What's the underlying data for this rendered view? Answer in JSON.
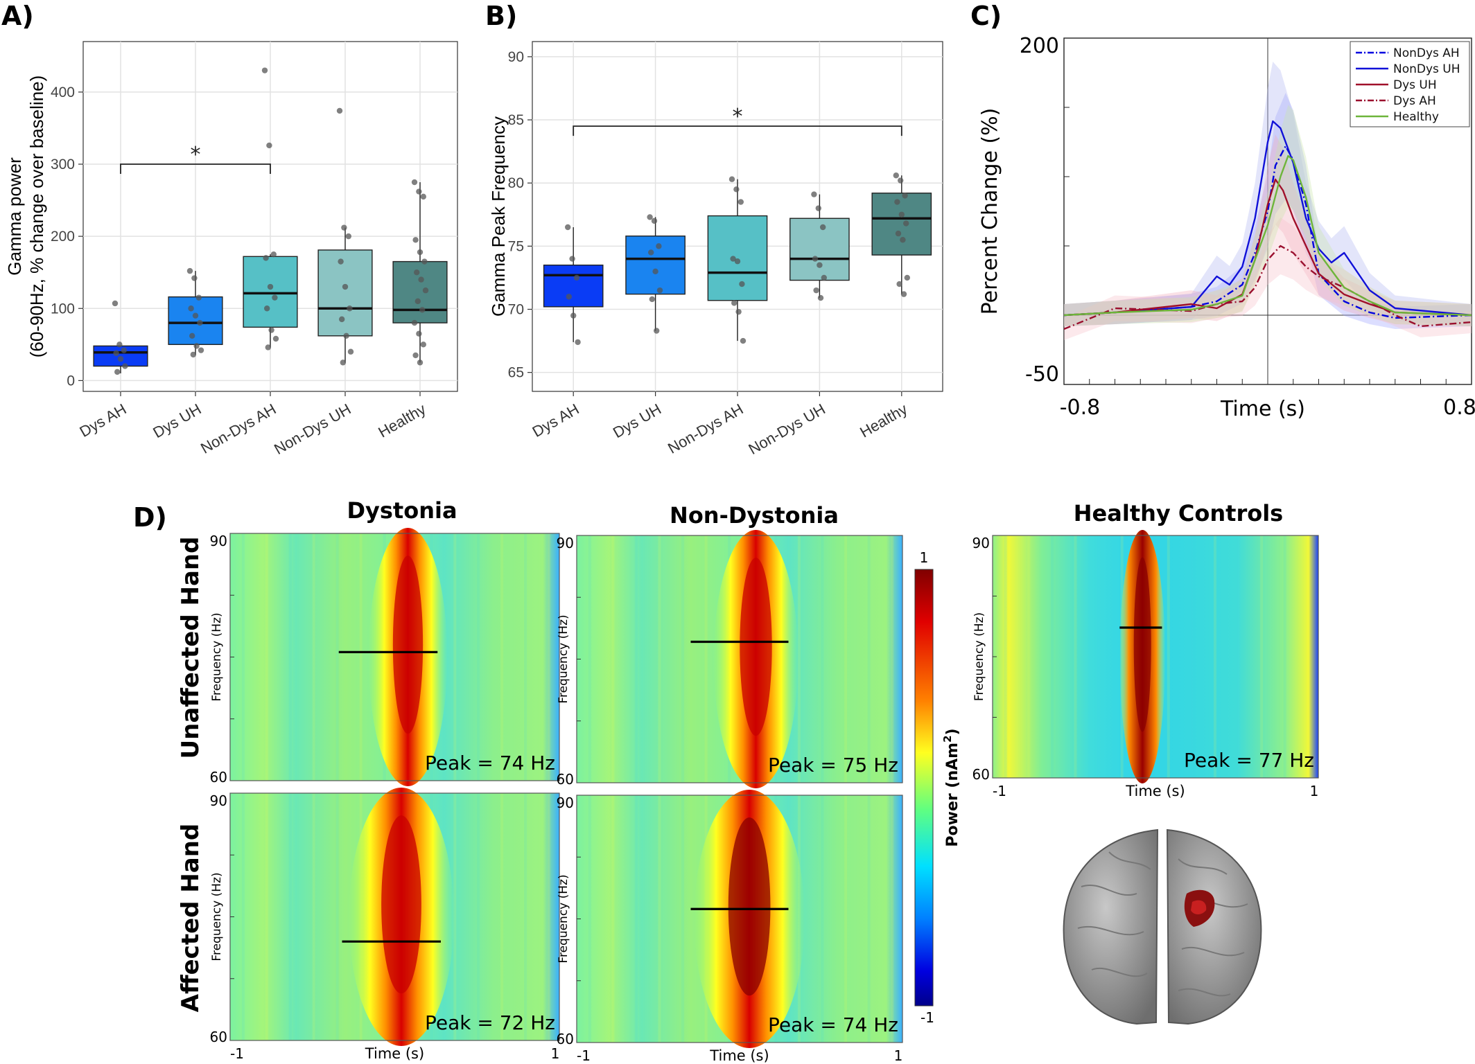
{
  "panel_labels": {
    "A": "A)",
    "B": "B)",
    "C": "C)",
    "D": "D)"
  },
  "colors": {
    "Dys AH": "#0a3cf5",
    "Dys UH": "#1a84f0",
    "Non-Dys AH": "#56c0c6",
    "Non-Dys UH": "#8bc4c3",
    "Healthy": "#4f8784",
    "NonDys AH": "#0000e0",
    "NonDys UH": "#1010d8",
    "Dys UH line": "#a0102a",
    "Dys AH line": "#9a0f2e",
    "Healthy line": "#6db53a"
  },
  "chart_data": [
    {
      "id": "A",
      "type": "box",
      "categories": [
        "Dys AH",
        "Dys UH",
        "Non-Dys AH",
        "Non-Dys UH",
        "Healthy"
      ],
      "ylabel": "Gamma power",
      "ylabel2": "(60-90Hz, % change over baseline)",
      "ylim": [
        -15,
        470
      ],
      "yticks": [
        0,
        100,
        200,
        300,
        400
      ],
      "grid": true,
      "boxes": [
        {
          "q1": 20,
          "median": 39,
          "q3": 48,
          "whisker_low": 10,
          "whisker_high": 48,
          "points": [
            107,
            50,
            42,
            38,
            30,
            20,
            12
          ]
        },
        {
          "q1": 50,
          "median": 80,
          "q3": 116,
          "whisker_low": 36,
          "whisker_high": 152,
          "points": [
            152,
            142,
            115,
            100,
            90,
            80,
            62,
            48,
            42,
            36
          ]
        },
        {
          "q1": 74,
          "median": 121,
          "q3": 172,
          "whisker_low": 46,
          "whisker_high": 175,
          "points": [
            430,
            326,
            175,
            170,
            130,
            115,
            100,
            70,
            58,
            46
          ]
        },
        {
          "q1": 62,
          "median": 100,
          "q3": 181,
          "whisker_low": 25,
          "whisker_high": 212,
          "points": [
            374,
            212,
            200,
            165,
            130,
            100,
            85,
            62,
            40,
            25
          ]
        },
        {
          "q1": 80,
          "median": 98,
          "q3": 165,
          "whisker_low": 25,
          "whisker_high": 275,
          "points": [
            275,
            262,
            255,
            195,
            178,
            165,
            150,
            140,
            125,
            110,
            98,
            80,
            65,
            50,
            35,
            25
          ]
        }
      ],
      "significance": {
        "from": 0,
        "to": 2,
        "y": 300,
        "label": "*"
      }
    },
    {
      "id": "B",
      "type": "box",
      "categories": [
        "Dys AH",
        "Dys UH",
        "Non-Dys AH",
        "Non-Dys UH",
        "Healthy"
      ],
      "ylabel": "Gamma Peak Frequency",
      "ylim": [
        63.5,
        91.2
      ],
      "yticks": [
        65,
        70,
        75,
        80,
        85,
        90
      ],
      "grid": true,
      "boxes": [
        {
          "q1": 70.2,
          "median": 72.7,
          "q3": 73.5,
          "whisker_low": 67.4,
          "whisker_high": 76.5,
          "points": [
            76.5,
            74,
            72.5,
            71,
            69.5,
            67.4
          ]
        },
        {
          "q1": 71.2,
          "median": 74.0,
          "q3": 75.8,
          "whisker_low": 68.3,
          "whisker_high": 77.3,
          "points": [
            77.3,
            77,
            75,
            74.5,
            73,
            71.5,
            70.8,
            68.3
          ]
        },
        {
          "q1": 70.7,
          "median": 72.9,
          "q3": 77.4,
          "whisker_low": 67.5,
          "whisker_high": 80.3,
          "points": [
            80.3,
            79.5,
            78.5,
            74,
            73.8,
            72,
            70.5,
            69.8,
            67.5
          ]
        },
        {
          "q1": 72.3,
          "median": 74.0,
          "q3": 77.2,
          "whisker_low": 70.9,
          "whisker_high": 79.1,
          "points": [
            79.1,
            78,
            76.5,
            74,
            73.5,
            72.5,
            71.5,
            70.9
          ]
        },
        {
          "q1": 74.3,
          "median": 77.2,
          "q3": 79.2,
          "whisker_low": 71.2,
          "whisker_high": 80.6,
          "points": [
            80.6,
            80.2,
            79,
            78.5,
            77.5,
            76.8,
            76,
            75.5,
            72.5,
            72,
            71.2
          ]
        }
      ],
      "significance": {
        "from": 0,
        "to": 4,
        "y": 84.5,
        "label": "*"
      }
    },
    {
      "id": "C",
      "type": "line",
      "ylabel": "Percent Change (%)",
      "xlabel": "Time (s)",
      "xlim": [
        -0.8,
        0.8
      ],
      "ylim": [
        -50,
        200
      ],
      "xtick_labels": [
        "-0.8",
        "0.8"
      ],
      "ytick_labels": [
        "200",
        "-50"
      ],
      "legend_position": "top-right",
      "series": [
        {
          "name": "NonDys AH",
          "style": "dash-dot",
          "x": [
            -0.8,
            -0.6,
            -0.3,
            -0.2,
            -0.1,
            -0.05,
            0,
            0.03,
            0.07,
            0.1,
            0.15,
            0.2,
            0.3,
            0.4,
            0.5,
            0.8
          ],
          "y": [
            0,
            2,
            6,
            10,
            22,
            45,
            75,
            108,
            122,
            112,
            80,
            30,
            10,
            2,
            -2,
            0
          ]
        },
        {
          "name": "NonDys UH",
          "style": "solid",
          "x": [
            -0.8,
            -0.6,
            -0.3,
            -0.2,
            -0.15,
            -0.1,
            -0.05,
            0,
            0.02,
            0.05,
            0.1,
            0.15,
            0.2,
            0.25,
            0.3,
            0.4,
            0.5,
            0.8
          ],
          "y": [
            0,
            2,
            6,
            28,
            22,
            35,
            70,
            125,
            140,
            135,
            110,
            70,
            48,
            38,
            45,
            18,
            5,
            0
          ]
        },
        {
          "name": "Dys UH",
          "style": "solid",
          "x": [
            -0.8,
            -0.6,
            -0.3,
            -0.2,
            -0.1,
            -0.05,
            0,
            0.03,
            0.06,
            0.1,
            0.15,
            0.2,
            0.3,
            0.4,
            0.5,
            0.8
          ],
          "y": [
            0,
            2,
            8,
            5,
            15,
            40,
            80,
            98,
            90,
            70,
            50,
            30,
            15,
            8,
            2,
            0
          ]
        },
        {
          "name": "Dys AH",
          "style": "dash-dot",
          "x": [
            -0.8,
            -0.6,
            -0.3,
            -0.2,
            -0.1,
            -0.05,
            0,
            0.05,
            0.1,
            0.15,
            0.2,
            0.3,
            0.4,
            0.5,
            0.6,
            0.8
          ],
          "y": [
            -10,
            5,
            3,
            8,
            10,
            20,
            40,
            50,
            45,
            35,
            28,
            20,
            10,
            0,
            -8,
            -5
          ]
        },
        {
          "name": "Healthy",
          "style": "solid",
          "x": [
            -0.8,
            -0.6,
            -0.3,
            -0.2,
            -0.1,
            -0.05,
            0,
            0.05,
            0.08,
            0.1,
            0.15,
            0.2,
            0.3,
            0.4,
            0.5,
            0.8
          ],
          "y": [
            0,
            2,
            4,
            8,
            14,
            40,
            65,
            100,
            115,
            112,
            85,
            45,
            20,
            10,
            2,
            0
          ]
        }
      ]
    },
    {
      "id": "D",
      "type": "heatmap",
      "column_titles": [
        "Dystonia",
        "Non-Dystonia",
        "Healthy Controls"
      ],
      "row_titles": [
        "Unaffected Hand",
        "Affected Hand"
      ],
      "ylabel": "Frequency (Hz)",
      "xlabel": "Time (s)",
      "x_ticks": [
        "-1",
        "1"
      ],
      "y_ticks": [
        "90",
        "60"
      ],
      "colorbar": {
        "label": "Power (nAm",
        "exponent": "2",
        "close": ")",
        "max_label": "1",
        "min_label": "-1"
      },
      "maps": [
        {
          "label": "Peak = 74 Hz",
          "peak_hz": 74,
          "peak_time": 0.0
        },
        {
          "label": "Peak = 75 Hz",
          "peak_hz": 75,
          "peak_time": 0.0
        },
        {
          "label": "Peak = 77 Hz",
          "peak_hz": 77,
          "peak_time": 0.0
        },
        {
          "label": "Peak = 72 Hz",
          "peak_hz": 72,
          "peak_time": 0.0
        },
        {
          "label": "Peak = 74 Hz",
          "peak_hz": 74,
          "peak_time": 0.0
        }
      ]
    }
  ]
}
